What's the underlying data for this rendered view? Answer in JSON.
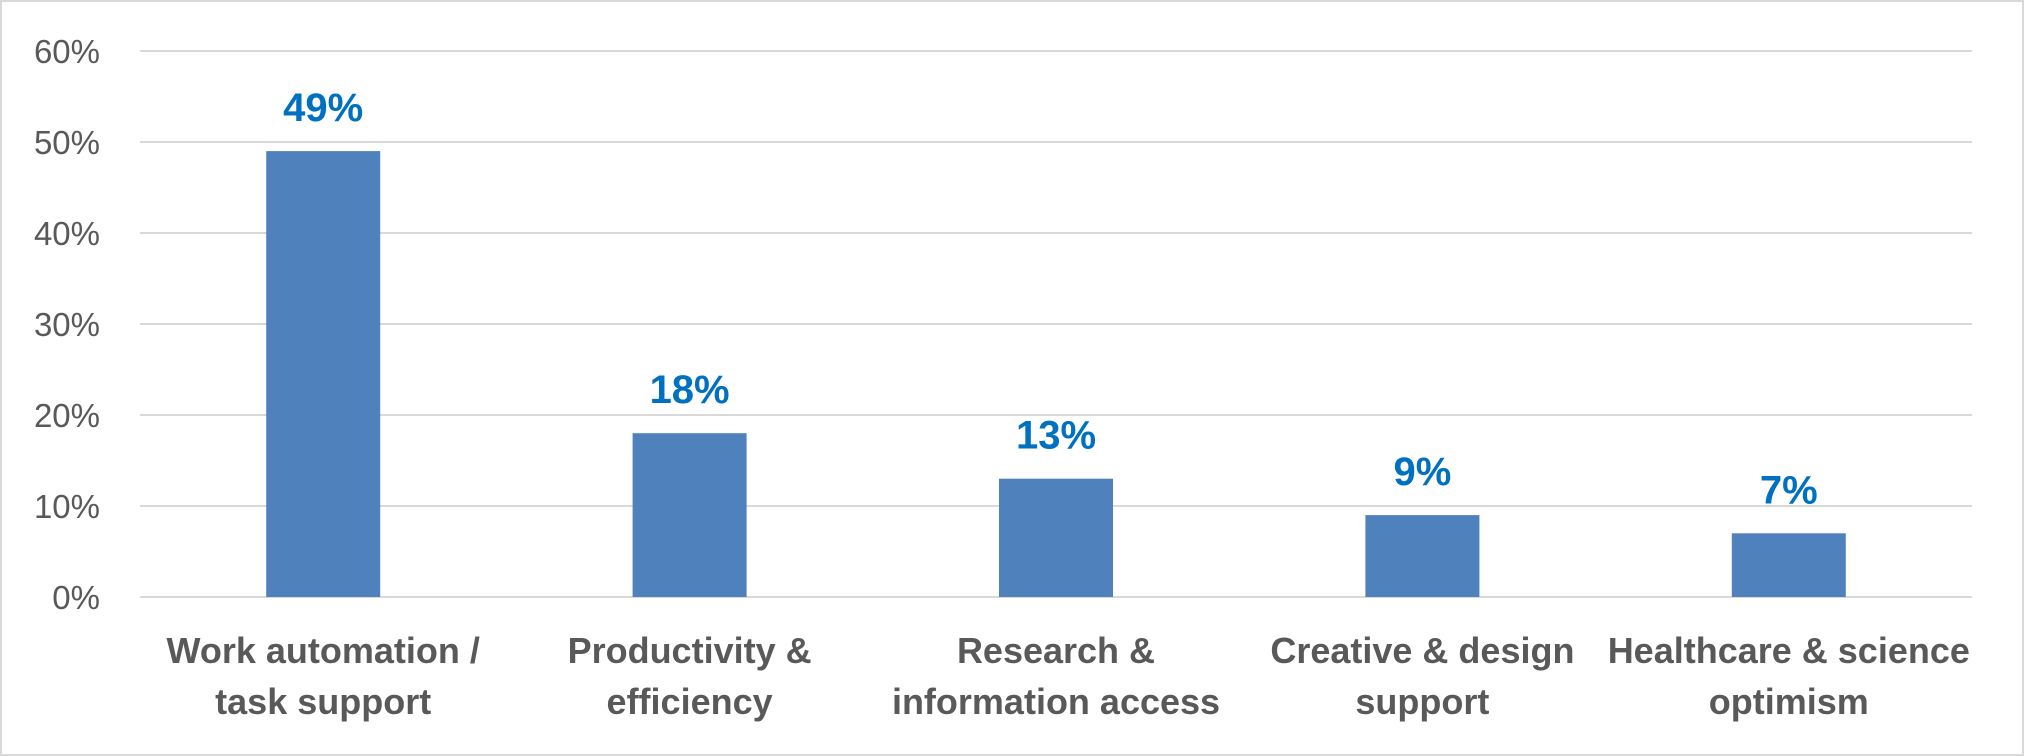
{
  "chart_data": {
    "type": "bar",
    "title": "",
    "xlabel": "",
    "ylabel": "",
    "categories": [
      [
        "Work automation /",
        "task support"
      ],
      [
        "Productivity &",
        "efficiency"
      ],
      [
        "Research &",
        "information access"
      ],
      [
        "Creative & design",
        "support"
      ],
      [
        "Healthcare & science",
        "optimism"
      ]
    ],
    "values": [
      49,
      18,
      13,
      9,
      7
    ],
    "data_labels": [
      "49%",
      "18%",
      "13%",
      "9%",
      "7%"
    ],
    "ylim": [
      0,
      60
    ],
    "yticks": [
      0,
      10,
      20,
      30,
      40,
      50,
      60
    ],
    "ytick_labels": [
      "0%",
      "10%",
      "20%",
      "30%",
      "40%",
      "50%",
      "60%"
    ],
    "grid": true,
    "legend": "none",
    "bar_color": "#4f81bd",
    "label_color": "#0070c0",
    "grid_color": "#d9d9d9"
  }
}
